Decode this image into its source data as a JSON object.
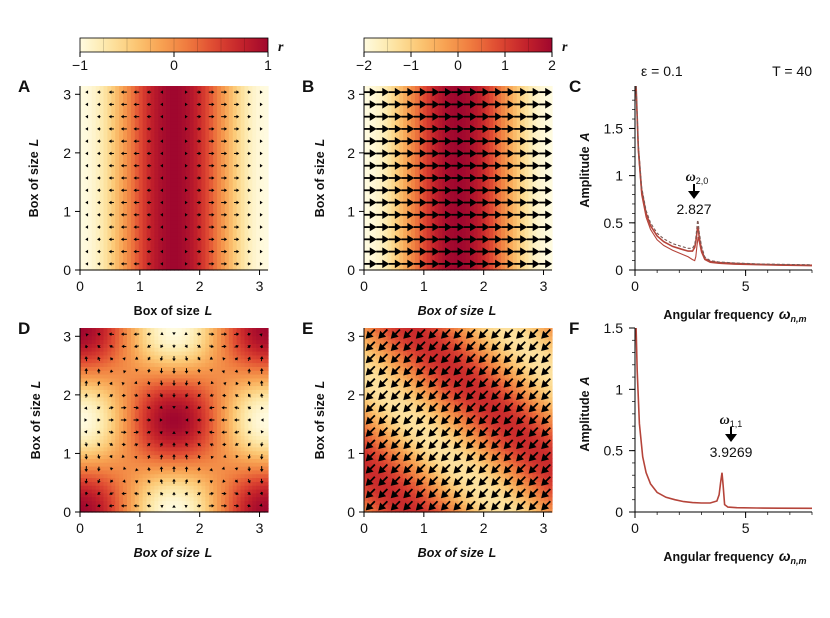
{
  "colors": {
    "scale": [
      "#fffbe0",
      "#fde8a9",
      "#fcc976",
      "#f7a252",
      "#ef7b3f",
      "#df4a32",
      "#c4222a",
      "#a0072e"
    ],
    "curve": "#b5443a",
    "arrows": "#000000"
  },
  "colorbars": [
    {
      "name": "colorbar-1",
      "symbol": "r",
      "min": -1,
      "max": 1,
      "tick_labels": [
        "−1",
        "0",
        "1"
      ],
      "tick_values": [
        -1,
        0,
        1
      ]
    },
    {
      "name": "colorbar-2",
      "symbol": "r",
      "min": -2,
      "max": 2,
      "tick_labels": [
        "−2",
        "−1",
        "0",
        "1",
        "2"
      ],
      "tick_values": [
        -2,
        -1,
        0,
        1,
        2
      ]
    }
  ],
  "header": {
    "epsilon": "ε = 0.1",
    "time": "T = 40"
  },
  "chart_data": [
    {
      "panel": "A",
      "type": "heatmap",
      "field": "r(x) = -cos(2x), vector field along x",
      "mode": {
        "n": 2,
        "m": 0
      },
      "xlabel": "Box of size",
      "xlabel_sym": "L",
      "ylabel": "Box of size",
      "ylabel_sym": "L",
      "xlim": [
        0,
        3.1416
      ],
      "ylim": [
        0,
        3.1416
      ],
      "xticks": [
        0,
        1,
        2,
        3
      ],
      "yticks": [
        0,
        1,
        2,
        3
      ],
      "vmin": -1,
      "vmax": 1,
      "arrow_scale": "small"
    },
    {
      "panel": "B",
      "type": "heatmap",
      "field": "r(x) = -2cos(2x), uniform arrows in +x",
      "mode": {
        "n": 2,
        "m": 0
      },
      "xlabel": "Box of size",
      "xlabel_sym": "L",
      "ylabel": "Box of size",
      "ylabel_sym": "L",
      "xlim": [
        0,
        3.1416
      ],
      "ylim": [
        0,
        3.1416
      ],
      "xticks": [
        0,
        1,
        2,
        3
      ],
      "yticks": [
        0,
        1,
        2,
        3
      ],
      "vmin": -2,
      "vmax": 2,
      "arrow_scale": "large"
    },
    {
      "panel": "C",
      "type": "line",
      "xlabel": "Angular frequency",
      "xlabel_sym": "ω",
      "xlabel_sub": "n,m",
      "ylabel": "Amplitude",
      "ylabel_sym": "A",
      "xlim": [
        0,
        8
      ],
      "ylim": [
        0,
        1.95
      ],
      "xticks": [
        0,
        5
      ],
      "yticks": [
        0,
        0.5,
        1,
        1.5
      ],
      "ytick_labels": [
        "0",
        "0.5",
        "1",
        "1.5"
      ],
      "annotation": {
        "symbol": "ω",
        "subscript": "2,0",
        "value": "2.827",
        "x": 2.827
      },
      "series": [
        {
          "name": "main",
          "x": [
            0.05,
            0.15,
            0.3,
            0.5,
            0.7,
            1.0,
            1.3,
            1.7,
            2.1,
            2.4,
            2.6,
            2.7,
            2.75,
            2.8,
            2.83,
            2.86,
            2.9,
            3.0,
            3.15,
            3.4,
            3.8,
            4.5,
            5.5,
            6.5,
            8.0
          ],
          "y": [
            1.95,
            1.3,
            0.85,
            0.6,
            0.47,
            0.36,
            0.3,
            0.25,
            0.22,
            0.2,
            0.2,
            0.24,
            0.3,
            0.4,
            0.46,
            0.44,
            0.35,
            0.22,
            0.12,
            0.09,
            0.08,
            0.07,
            0.06,
            0.055,
            0.05
          ]
        },
        {
          "name": "lower",
          "x": [
            0.05,
            0.15,
            0.3,
            0.5,
            0.7,
            1.0,
            1.3,
            1.7,
            2.1,
            2.4,
            2.6,
            2.7,
            2.75,
            2.8,
            2.85,
            2.9,
            3.0,
            3.15,
            3.4,
            3.8,
            4.5,
            5.5,
            6.5,
            8.0
          ],
          "y": [
            1.92,
            1.25,
            0.8,
            0.56,
            0.43,
            0.32,
            0.26,
            0.21,
            0.17,
            0.14,
            0.11,
            0.1,
            0.14,
            0.26,
            0.35,
            0.3,
            0.19,
            0.11,
            0.08,
            0.07,
            0.06,
            0.055,
            0.05,
            0.045
          ]
        },
        {
          "name": "dashed",
          "x": [
            0.05,
            0.15,
            0.3,
            0.5,
            0.7,
            1.0,
            1.3,
            1.7,
            2.1,
            2.4,
            2.6,
            2.7,
            2.75,
            2.8,
            2.83,
            2.86,
            2.9,
            3.0,
            3.15,
            3.4,
            3.8,
            4.5,
            5.5,
            6.5,
            8.0
          ],
          "y": [
            1.97,
            1.33,
            0.88,
            0.63,
            0.5,
            0.39,
            0.33,
            0.28,
            0.25,
            0.23,
            0.23,
            0.27,
            0.34,
            0.46,
            0.53,
            0.5,
            0.4,
            0.26,
            0.14,
            0.1,
            0.085,
            0.075,
            0.065,
            0.06,
            0.055
          ]
        }
      ]
    },
    {
      "panel": "D",
      "type": "heatmap",
      "field": "r(x,y) = cos(2x)cos(2y), gradient vector field",
      "mode": {
        "n": 1,
        "m": 1
      },
      "xlabel": "Box of size",
      "xlabel_sym": "L",
      "ylabel": "Box of size",
      "ylabel_sym": "L",
      "xlim": [
        0,
        3.1416
      ],
      "ylim": [
        0,
        3.1416
      ],
      "xticks": [
        0,
        1,
        2,
        3
      ],
      "yticks": [
        0,
        1,
        2,
        3
      ],
      "vmin": -1,
      "vmax": 1,
      "arrow_scale": "small"
    },
    {
      "panel": "E",
      "type": "heatmap",
      "field": "r(x,y) = 1.3sin(2(x+y)), uniform arrows toward lower-left",
      "mode": {
        "n": 1,
        "m": 1
      },
      "xlabel": "Box of size",
      "xlabel_sym": "L",
      "ylabel": "Box of size",
      "ylabel_sym": "L",
      "xlim": [
        0,
        3.1416
      ],
      "ylim": [
        0,
        3.1416
      ],
      "xticks": [
        0,
        1,
        2,
        3
      ],
      "yticks": [
        0,
        1,
        2,
        3
      ],
      "vmin": -2,
      "vmax": 2,
      "arrow_scale": "large"
    },
    {
      "panel": "F",
      "type": "line",
      "xlabel": "Angular frequency",
      "xlabel_sym": "ω",
      "xlabel_sub": "n,m",
      "ylabel": "Amplitude",
      "ylabel_sym": "A",
      "xlim": [
        0,
        8
      ],
      "ylim": [
        0,
        1.5
      ],
      "xticks": [
        0,
        5
      ],
      "yticks": [
        0,
        0.5,
        1,
        1.5
      ],
      "ytick_labels": [
        "0",
        "0.5",
        "1",
        "1.5"
      ],
      "annotation": {
        "symbol": "ω",
        "subscript": "1,1",
        "value": "3.9269",
        "x": 3.9269
      },
      "series": [
        {
          "name": "main",
          "x": [
            0.05,
            0.1,
            0.2,
            0.35,
            0.5,
            0.7,
            1.0,
            1.4,
            1.8,
            2.2,
            2.6,
            3.0,
            3.4,
            3.7,
            3.8,
            3.87,
            3.93,
            3.98,
            4.05,
            4.2,
            4.6,
            5.5,
            6.5,
            8.0
          ],
          "y": [
            1.5,
            1.15,
            0.72,
            0.45,
            0.32,
            0.23,
            0.16,
            0.12,
            0.1,
            0.085,
            0.077,
            0.073,
            0.073,
            0.09,
            0.14,
            0.24,
            0.32,
            0.22,
            0.06,
            0.04,
            0.035,
            0.033,
            0.031,
            0.03
          ]
        }
      ]
    }
  ]
}
